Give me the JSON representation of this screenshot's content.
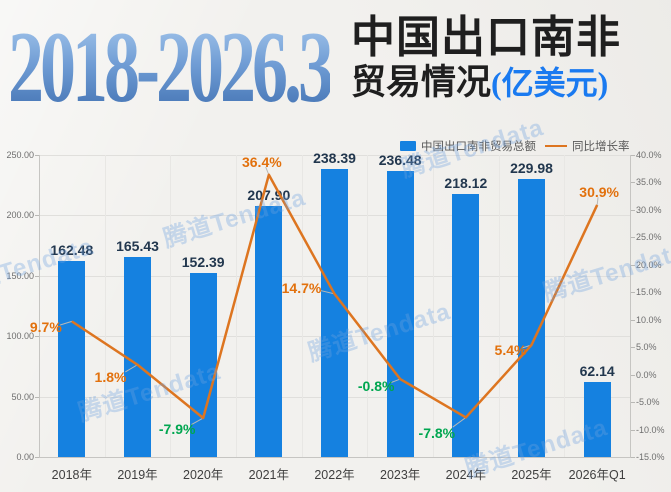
{
  "title": {
    "years": "2018-2026.3",
    "cn_line1": "中国出口南非",
    "cn_line2": "贸易情况",
    "cn_unit": "(亿美元)"
  },
  "watermark": {
    "text": "腾道Tendata"
  },
  "chart_data": {
    "type": "bar+line combo",
    "categories": [
      "2018年",
      "2019年",
      "2020年",
      "2021年",
      "2022年",
      "2023年",
      "2024年",
      "2025年",
      "2026年Q1"
    ],
    "series": [
      {
        "name": "中国出口南非贸易总额",
        "type": "bar",
        "axis": "left",
        "values": [
          162.48,
          165.43,
          152.39,
          207.9,
          238.39,
          236.48,
          218.12,
          229.98,
          62.14
        ],
        "labels": [
          "162.48",
          "165.43",
          "152.39",
          "207.90",
          "238.39",
          "236.48",
          "218.12",
          "229.98",
          "62.14"
        ]
      },
      {
        "name": "同比增长率",
        "type": "line",
        "axis": "right",
        "values": [
          9.7,
          1.8,
          -7.9,
          36.4,
          14.7,
          -0.8,
          -7.8,
          5.4,
          30.9
        ],
        "labels": [
          "9.7%",
          "1.8%",
          "-7.9%",
          "36.4%",
          "14.7%",
          "-0.8%",
          "-7.8%",
          "5.4%",
          "30.9%"
        ]
      }
    ],
    "left_axis": {
      "title": "",
      "min": 0,
      "max": 250,
      "ticks": [
        "250.00",
        "200.00",
        "150.00",
        "100.00",
        "50.00",
        "0.00"
      ]
    },
    "right_axis": {
      "title": "",
      "min": -15,
      "max": 40,
      "ticks": [
        "40.0%",
        "35.0%",
        "30.0%",
        "25.0%",
        "20.0%",
        "15.0%",
        "10.0%",
        "5.0%",
        "0.0%",
        "-5.0%",
        "-10.0%",
        "-15.0%"
      ]
    },
    "grid": true,
    "legend_position": "top"
  },
  "colors": {
    "background": "#f2f1ee",
    "bar": "#1581e0",
    "line": "#dd7520",
    "positive_label": "#e2710d",
    "negative_label": "#00a650",
    "bar_label": "#22374e",
    "title_gradient_top": "#aacbee",
    "title_gradient_bottom": "#3f6fb0",
    "title_cn": "#1f1f1f",
    "unit_blue": "#1a7af0",
    "watermark": "rgba(110,160,224,0.34)",
    "grid": "#e0dfdc"
  }
}
